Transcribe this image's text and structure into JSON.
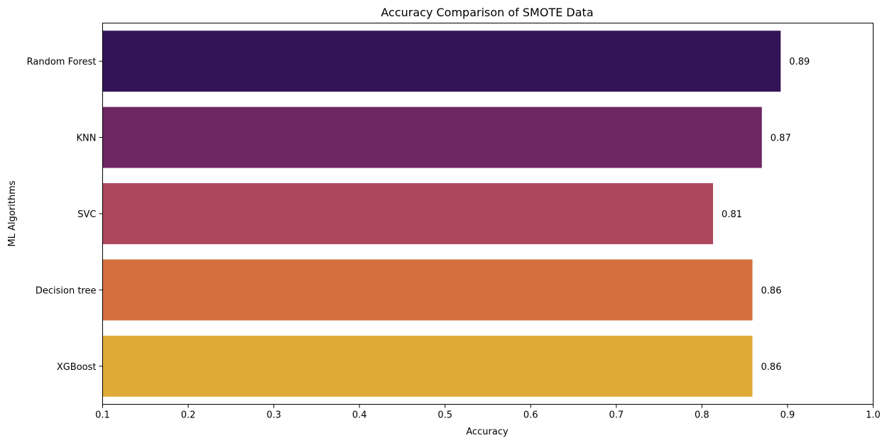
{
  "chart_data": {
    "type": "bar",
    "orientation": "horizontal",
    "title": "Accuracy Comparison of SMOTE Data",
    "xlabel": "Accuracy",
    "ylabel": "ML Algorithms",
    "categories": [
      "Random Forest",
      "KNN",
      "SVC",
      "Decision tree",
      "XGBoost"
    ],
    "values": [
      0.892,
      0.87,
      0.813,
      0.859,
      0.859
    ],
    "data_labels": [
      "0.89",
      "0.87",
      "0.81",
      "0.86",
      "0.86"
    ],
    "colors": [
      "#331555",
      "#6e2762",
      "#ad485c",
      "#d5703e",
      "#e0aa36"
    ],
    "xlim": [
      0.1,
      1.0
    ],
    "xticks": [
      0.1,
      0.2,
      0.3,
      0.4,
      0.5,
      0.6,
      0.7,
      0.8,
      0.9,
      1.0
    ],
    "xtick_labels": [
      "0.1",
      "0.2",
      "0.3",
      "0.4",
      "0.5",
      "0.6",
      "0.7",
      "0.8",
      "0.9",
      "1.0"
    ],
    "grid": false,
    "legend": "none"
  }
}
